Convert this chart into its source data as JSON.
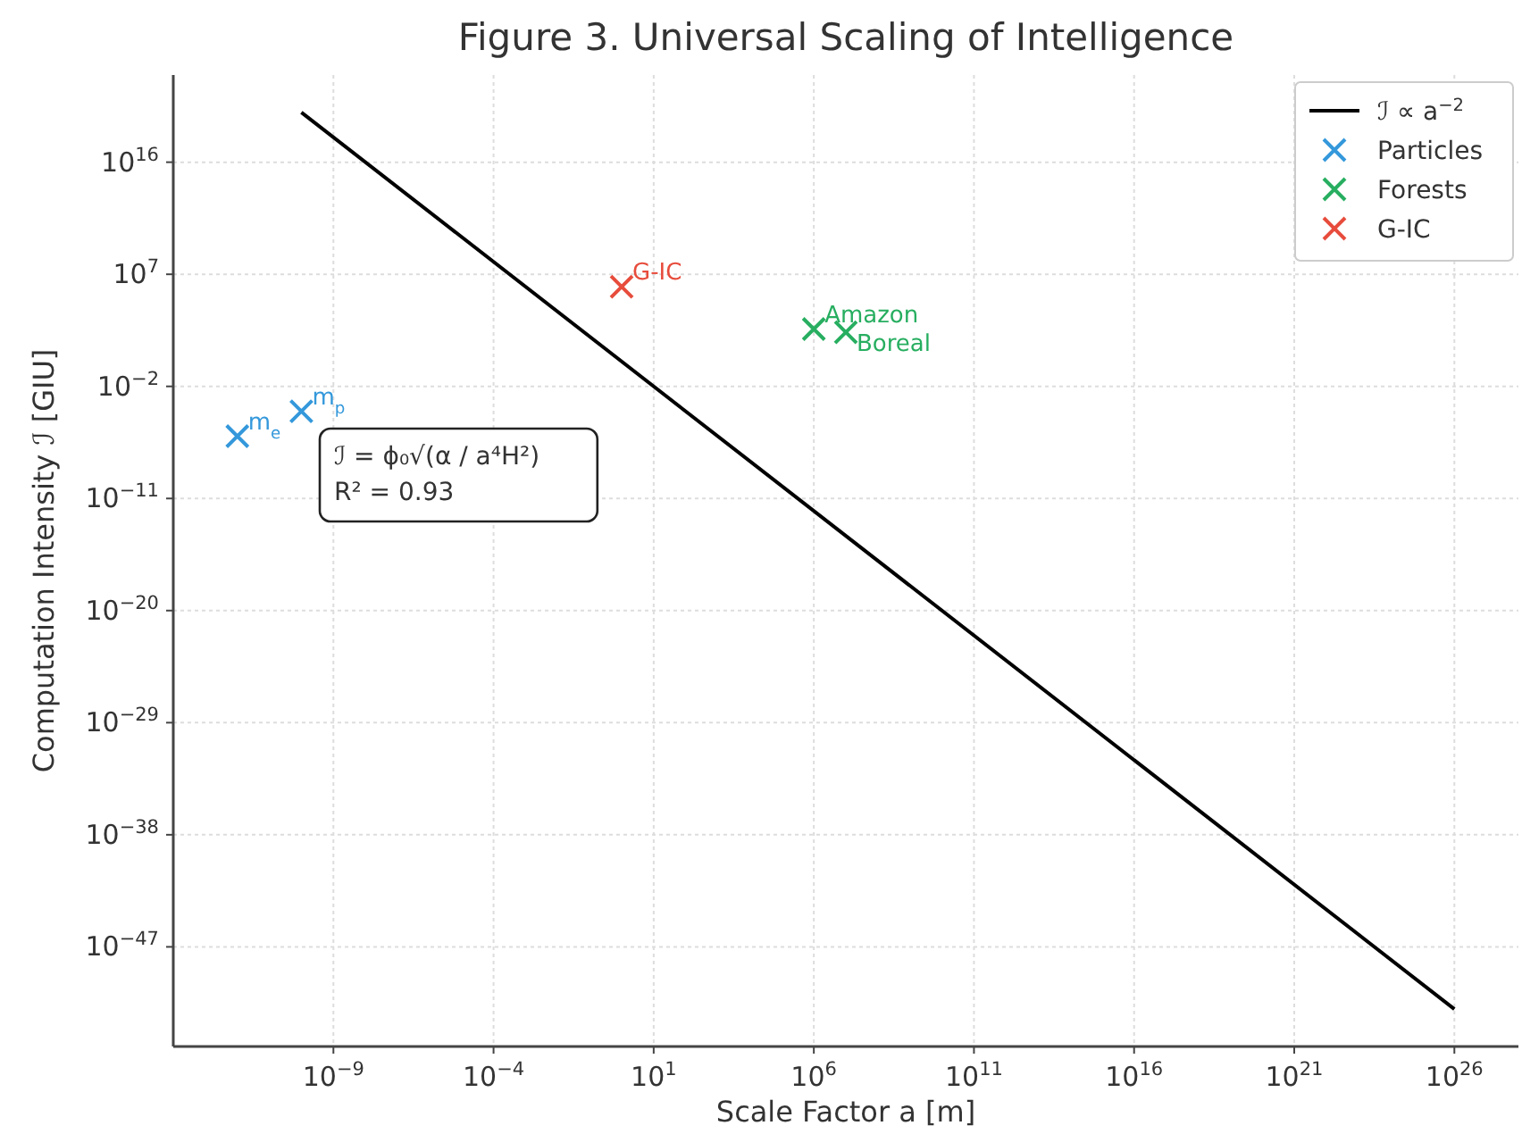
{
  "chart_data": {
    "type": "scatter",
    "title": "Figure 3. Universal Scaling of Intelligence",
    "xlabel": "Scale Factor a [m]",
    "ylabel": "Computation Intensity ℐ [GIU]",
    "log": "xy",
    "grid": true,
    "legend": "top right",
    "marker": "cross",
    "xlim": [
      1e-14,
      1e+28
    ],
    "ylim": [
      1e-55,
      1e+23
    ],
    "xticks": [
      {
        "value": 1e-09,
        "label": "10$^{−9}$"
      },
      {
        "value": 0.0001,
        "label": "10$^{−4}$"
      },
      {
        "value": 10,
        "label": "10$^{1}$"
      },
      {
        "value": 1000000.0,
        "label": "10$^{6}$"
      },
      {
        "value": 100000000000.0,
        "label": "10$^{11}$"
      },
      {
        "value": 1e+16,
        "label": "10$^{16}$"
      },
      {
        "value": 1e+21,
        "label": "10$^{21}$"
      },
      {
        "value": 1e+26,
        "label": "10$^{26}$"
      }
    ],
    "yticks": [
      {
        "value": 1e+16,
        "label": "10$^{16}$"
      },
      {
        "value": 10000000.0,
        "label": "10$^{7}$"
      },
      {
        "value": 0.01,
        "label": "10$^{−2}$"
      },
      {
        "value": 1e-11,
        "label": "10$^{−11}$"
      },
      {
        "value": 1e-20,
        "label": "10$^{−20}$"
      },
      {
        "value": 1e-29,
        "label": "10$^{−29}$"
      },
      {
        "value": 1e-38,
        "label": "10$^{−38}$"
      },
      {
        "value": 1e-47,
        "label": "10$^{−47}$"
      }
    ],
    "series": [
      {
        "name": "ℐ ∝ a$^{−2}$",
        "type": "line",
        "color": "#000000",
        "marker": "none",
        "x": [
          1e-10,
          1e+26
        ],
        "values": [
          1e+20,
          1e-52
        ]
      },
      {
        "name": "Particles",
        "color": "#3498db",
        "x": [
          1e-12,
          1e-10
        ],
        "values": [
          1e-06,
          0.0001
        ]
      },
      {
        "name": "Forests",
        "color": "#27ae60",
        "x": [
          1000000.0,
          10000000.0
        ],
        "values": [
          400,
          220
        ]
      },
      {
        "name": "G-IC",
        "color": "#e74c3c",
        "x": [
          1
        ],
        "values": [
          1000000.0
        ]
      }
    ],
    "annotations": [
      {
        "text": "m$_{e}$",
        "x": 1e-12,
        "y": 1e-06
      },
      {
        "text": "m$_{p}$",
        "x": 1e-10,
        "y": 0.0001
      },
      {
        "text": "G-IC",
        "x": 1,
        "y": 1000000.0
      },
      {
        "text": "Amazon",
        "x": 1000000.0,
        "y": 400
      },
      {
        "text": "Boreal",
        "x": 10000000.0,
        "y": 220
      },
      "ℐ = ϕ₀√(α / a⁴H²)",
      "R² = 0.93"
    ]
  }
}
